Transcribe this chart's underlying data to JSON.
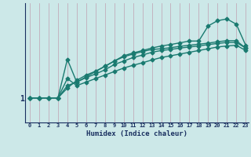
{
  "xlabel": "Humidex (Indice chaleur)",
  "background_color": "#cce8e8",
  "line_color": "#1a7a70",
  "grid_color": "#c0a0b0",
  "xmin": 0,
  "xmax": 23,
  "lines": [
    [
      1,
      1,
      1,
      1,
      1.55,
      1.35,
      1.45,
      1.55,
      1.65,
      1.75,
      1.85,
      1.93,
      2.0,
      2.08,
      2.15,
      2.2,
      2.25,
      2.3,
      2.35,
      2.4,
      2.45,
      2.48,
      2.5,
      2.35
    ],
    [
      1,
      1,
      1,
      1,
      2.1,
      1.45,
      1.6,
      1.75,
      1.9,
      2.05,
      2.2,
      2.28,
      2.35,
      2.42,
      2.48,
      2.52,
      2.57,
      2.62,
      2.62,
      3.05,
      3.2,
      3.25,
      3.1,
      2.5
    ],
    [
      1,
      1,
      1,
      1,
      1.35,
      1.45,
      1.58,
      1.68,
      1.8,
      1.95,
      2.05,
      2.15,
      2.22,
      2.3,
      2.35,
      2.38,
      2.42,
      2.45,
      2.48,
      2.52,
      2.55,
      2.58,
      2.58,
      2.42
    ],
    [
      1,
      1,
      1,
      1,
      1.28,
      1.5,
      1.65,
      1.76,
      1.9,
      2.05,
      2.17,
      2.25,
      2.32,
      2.38,
      2.4,
      2.43,
      2.47,
      2.5,
      2.53,
      2.56,
      2.6,
      2.63,
      2.63,
      2.42
    ]
  ],
  "x_ticks": [
    0,
    1,
    2,
    3,
    4,
    5,
    6,
    7,
    8,
    9,
    10,
    11,
    12,
    13,
    14,
    15,
    16,
    17,
    18,
    19,
    20,
    21,
    22,
    23
  ],
  "ytick_labels": [
    "1"
  ],
  "ytick_values": [
    1.0
  ],
  "ymin": 0.3,
  "ymax": 3.7,
  "font_color": "#1a3060",
  "marker": "D",
  "markersize": 2.5,
  "linewidth": 1.0
}
